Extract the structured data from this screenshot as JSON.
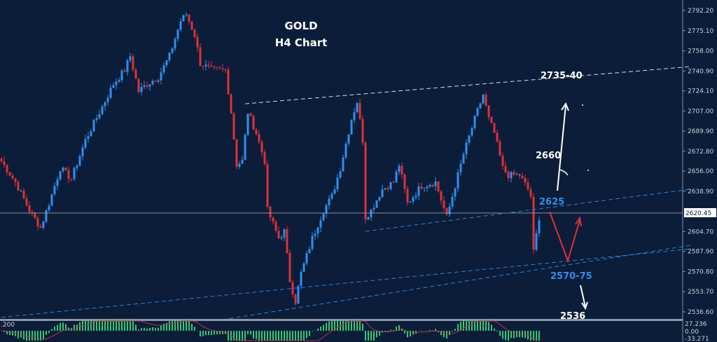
{
  "chart_data": {
    "type": "candlestick",
    "title": "GOLD",
    "subtitle": "H4 Chart",
    "ylim": [
      2530,
      2800
    ],
    "y_ticks": [
      "2792.20",
      "2775.10",
      "2758.00",
      "2740.90",
      "2724.10",
      "2707.00",
      "2689.90",
      "2672.80",
      "2656.00",
      "2638.90",
      "2620.45",
      "2604.70",
      "2587.90",
      "2570.80",
      "2553.70",
      "2536.60"
    ],
    "current_price": "2620.45",
    "bars": 193,
    "close_path": [
      [
        0,
        2664.4
      ],
      [
        5,
        2646.6
      ],
      [
        10,
        2622.8
      ],
      [
        14,
        2607.9
      ],
      [
        17,
        2628.7
      ],
      [
        21,
        2658.5
      ],
      [
        25,
        2649.5
      ],
      [
        30,
        2682.2
      ],
      [
        35,
        2706.0
      ],
      [
        40,
        2729.8
      ],
      [
        44,
        2741.7
      ],
      [
        46,
        2753.6
      ],
      [
        49,
        2723.8
      ],
      [
        52,
        2729.8
      ],
      [
        56,
        2735.7
      ],
      [
        60,
        2753.6
      ],
      [
        64,
        2783.3
      ],
      [
        66,
        2789.2
      ],
      [
        69,
        2771.4
      ],
      [
        71,
        2747.6
      ],
      [
        75,
        2741.7
      ],
      [
        80,
        2741.7
      ],
      [
        82,
        2706.0
      ],
      [
        84,
        2661.4
      ],
      [
        86,
        2664.4
      ],
      [
        88,
        2706.0
      ],
      [
        91,
        2688.2
      ],
      [
        94,
        2664.4
      ],
      [
        95,
        2622.8
      ],
      [
        99,
        2599.0
      ],
      [
        101,
        2604.9
      ],
      [
        103,
        2563.4
      ],
      [
        105,
        2545.5
      ],
      [
        107,
        2569.3
      ],
      [
        111,
        2599.0
      ],
      [
        115,
        2622.8
      ],
      [
        118,
        2634.7
      ],
      [
        121,
        2658.5
      ],
      [
        125,
        2700.1
      ],
      [
        127,
        2714.9
      ],
      [
        129,
        2682.2
      ],
      [
        130,
        2616.9
      ],
      [
        132,
        2622.8
      ],
      [
        136,
        2640.6
      ],
      [
        140,
        2646.6
      ],
      [
        142,
        2661.4
      ],
      [
        145,
        2628.7
      ],
      [
        150,
        2643.6
      ],
      [
        155,
        2646.6
      ],
      [
        159,
        2616.9
      ],
      [
        161,
        2634.7
      ],
      [
        165,
        2670.3
      ],
      [
        169,
        2700.1
      ],
      [
        172,
        2720.9
      ],
      [
        174,
        2700.1
      ],
      [
        176,
        2688.2
      ],
      [
        179,
        2658.5
      ],
      [
        181,
        2652.5
      ],
      [
        185,
        2652.5
      ],
      [
        188,
        2640.6
      ],
      [
        189,
        2634.7
      ],
      [
        190,
        2587.1
      ],
      [
        192,
        2616.9
      ]
    ],
    "trendlines": [
      {
        "style": "white-dashed",
        "from": [
          87,
          2713.1
        ],
        "to": [
          246,
          2744.6
        ]
      },
      {
        "style": "blue-dashed",
        "from": [
          130,
          2604.9
        ],
        "to": [
          246,
          2640.6
        ]
      },
      {
        "style": "blue-dashed",
        "from": [
          0,
          2532
        ],
        "to": [
          246,
          2590
        ]
      },
      {
        "style": "blue-dashed",
        "from": [
          79,
          2530
        ],
        "to": [
          246,
          2593
        ]
      }
    ],
    "annotations": [
      {
        "text": "2735-40",
        "color": "#ffffff"
      },
      {
        "text": "2660",
        "color": "#ffffff"
      },
      {
        "text": "2625",
        "color": "#2f8ff0"
      },
      {
        "text": "2570-75",
        "color": "#2f8ff0"
      },
      {
        "text": "2536",
        "color": "#ffffff"
      }
    ],
    "macd": {
      "labels": [
        "27.236",
        "0.00",
        "-33.271"
      ],
      "left_label": ".200"
    },
    "colors": {
      "background": "#0b1d38",
      "bull": "#2f8ff0",
      "bear": "#e0303a",
      "macd_hist": "#2ecc71",
      "signal": "#c0304a"
    }
  }
}
